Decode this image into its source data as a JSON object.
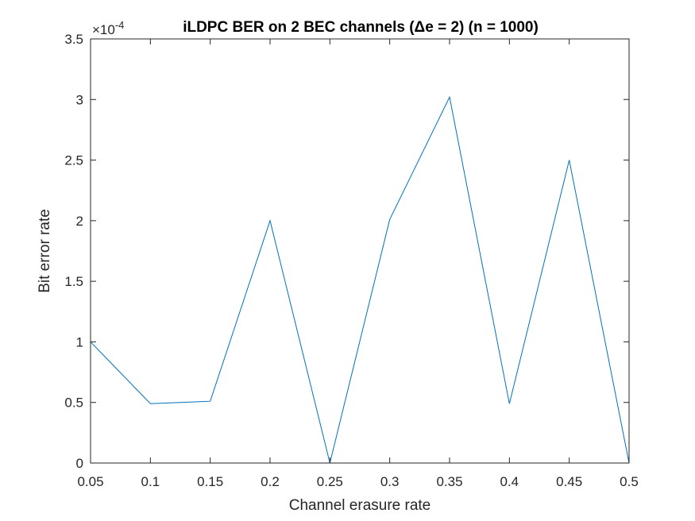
{
  "chart_data": {
    "type": "line",
    "title": "iLDPC BER on 2 BEC channels (Δe = 2) (n = 1000)",
    "xlabel": "Channel erasure rate",
    "ylabel": "Bit error rate",
    "y_exponent_label": "×10",
    "y_exponent_power": "-4",
    "xlim": [
      0.05,
      0.5
    ],
    "ylim": [
      0,
      3.5
    ],
    "xticks": [
      "0.05",
      "0.1",
      "0.15",
      "0.2",
      "0.25",
      "0.3",
      "0.35",
      "0.4",
      "0.45",
      "0.5"
    ],
    "yticks": [
      "0",
      "0.5",
      "1",
      "1.5",
      "2",
      "2.5",
      "3",
      "3.5"
    ],
    "grid": false,
    "series": [
      {
        "color": "#0072BD",
        "x": [
          0.05,
          0.1,
          0.15,
          0.2,
          0.25,
          0.3,
          0.35,
          0.4,
          0.45,
          0.5
        ],
        "y": [
          1.0,
          0.49,
          0.51,
          2.0,
          0.0,
          2.01,
          3.02,
          0.49,
          2.5,
          0.0
        ]
      }
    ]
  }
}
